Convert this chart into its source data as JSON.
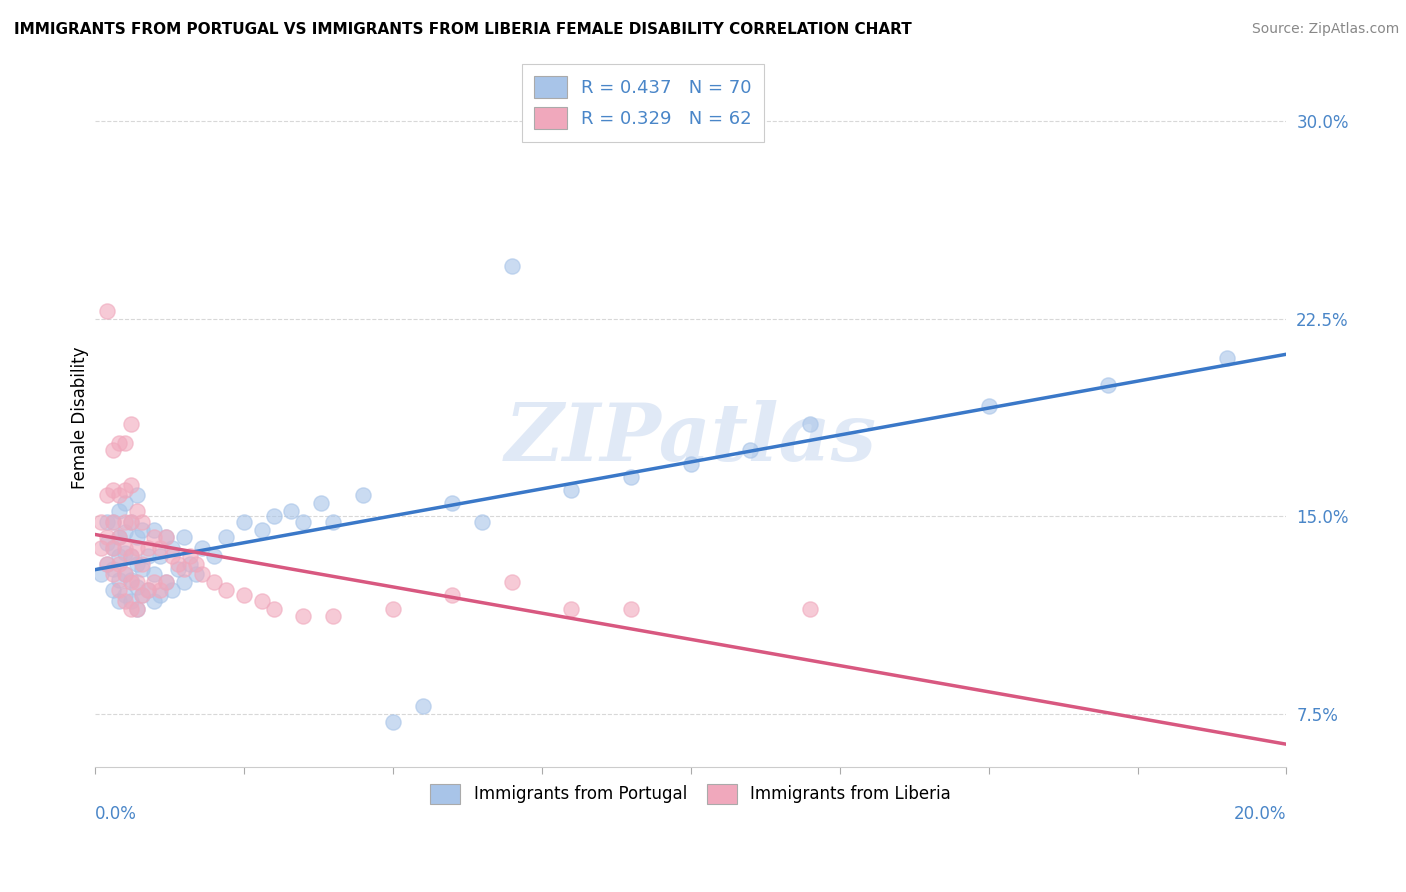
{
  "title": "IMMIGRANTS FROM PORTUGAL VS IMMIGRANTS FROM LIBERIA FEMALE DISABILITY CORRELATION CHART",
  "source": "Source: ZipAtlas.com",
  "ylabel": "Female Disability",
  "xlim": [
    0.0,
    0.2
  ],
  "ylim": [
    0.055,
    0.32
  ],
  "yticks": [
    0.075,
    0.15,
    0.225,
    0.3
  ],
  "ytick_labels": [
    "7.5%",
    "15.0%",
    "22.5%",
    "30.0%"
  ],
  "xticks": [
    0.0,
    0.025,
    0.05,
    0.075,
    0.1,
    0.125,
    0.15,
    0.175,
    0.2
  ],
  "color_portugal": "#a8c4e8",
  "color_liberia": "#f0a8bc",
  "line_color_portugal": "#3a78c8",
  "line_color_liberia": "#d85880",
  "tick_color": "#4a86c8",
  "R_portugal": 0.437,
  "N_portugal": 70,
  "R_liberia": 0.329,
  "N_liberia": 62,
  "legend_label_portugal": "Immigrants from Portugal",
  "legend_label_liberia": "Immigrants from Liberia",
  "watermark": "ZIPatlas",
  "portugal_x": [
    0.001,
    0.002,
    0.002,
    0.002,
    0.003,
    0.003,
    0.003,
    0.003,
    0.004,
    0.004,
    0.004,
    0.004,
    0.004,
    0.005,
    0.005,
    0.005,
    0.005,
    0.005,
    0.006,
    0.006,
    0.006,
    0.006,
    0.007,
    0.007,
    0.007,
    0.007,
    0.007,
    0.008,
    0.008,
    0.008,
    0.009,
    0.009,
    0.01,
    0.01,
    0.01,
    0.011,
    0.011,
    0.012,
    0.012,
    0.013,
    0.013,
    0.014,
    0.015,
    0.015,
    0.016,
    0.017,
    0.018,
    0.02,
    0.022,
    0.025,
    0.028,
    0.03,
    0.033,
    0.035,
    0.038,
    0.04,
    0.045,
    0.05,
    0.055,
    0.06,
    0.065,
    0.07,
    0.08,
    0.09,
    0.1,
    0.11,
    0.12,
    0.15,
    0.17,
    0.19
  ],
  "portugal_y": [
    0.128,
    0.132,
    0.14,
    0.148,
    0.122,
    0.13,
    0.138,
    0.148,
    0.118,
    0.126,
    0.135,
    0.142,
    0.152,
    0.12,
    0.128,
    0.136,
    0.144,
    0.155,
    0.118,
    0.126,
    0.135,
    0.148,
    0.115,
    0.123,
    0.132,
    0.142,
    0.158,
    0.12,
    0.13,
    0.145,
    0.122,
    0.135,
    0.118,
    0.128,
    0.145,
    0.12,
    0.135,
    0.125,
    0.142,
    0.122,
    0.138,
    0.13,
    0.125,
    0.142,
    0.132,
    0.128,
    0.138,
    0.135,
    0.142,
    0.148,
    0.145,
    0.15,
    0.152,
    0.148,
    0.155,
    0.148,
    0.158,
    0.072,
    0.078,
    0.155,
    0.148,
    0.245,
    0.16,
    0.165,
    0.17,
    0.175,
    0.185,
    0.192,
    0.2,
    0.21
  ],
  "liberia_x": [
    0.001,
    0.001,
    0.002,
    0.002,
    0.002,
    0.002,
    0.003,
    0.003,
    0.003,
    0.003,
    0.003,
    0.004,
    0.004,
    0.004,
    0.004,
    0.004,
    0.005,
    0.005,
    0.005,
    0.005,
    0.005,
    0.005,
    0.006,
    0.006,
    0.006,
    0.006,
    0.006,
    0.006,
    0.007,
    0.007,
    0.007,
    0.007,
    0.008,
    0.008,
    0.008,
    0.009,
    0.009,
    0.01,
    0.01,
    0.011,
    0.011,
    0.012,
    0.012,
    0.013,
    0.014,
    0.015,
    0.016,
    0.017,
    0.018,
    0.02,
    0.022,
    0.025,
    0.028,
    0.03,
    0.035,
    0.04,
    0.05,
    0.06,
    0.07,
    0.08,
    0.09,
    0.12
  ],
  "liberia_y": [
    0.138,
    0.148,
    0.132,
    0.142,
    0.158,
    0.228,
    0.128,
    0.138,
    0.148,
    0.16,
    0.175,
    0.122,
    0.132,
    0.142,
    0.158,
    0.178,
    0.118,
    0.128,
    0.138,
    0.148,
    0.16,
    0.178,
    0.115,
    0.125,
    0.135,
    0.148,
    0.162,
    0.185,
    0.115,
    0.125,
    0.138,
    0.152,
    0.12,
    0.132,
    0.148,
    0.122,
    0.138,
    0.125,
    0.142,
    0.122,
    0.138,
    0.125,
    0.142,
    0.135,
    0.132,
    0.13,
    0.135,
    0.132,
    0.128,
    0.125,
    0.122,
    0.12,
    0.118,
    0.115,
    0.112,
    0.112,
    0.115,
    0.12,
    0.125,
    0.115,
    0.115,
    0.115
  ]
}
